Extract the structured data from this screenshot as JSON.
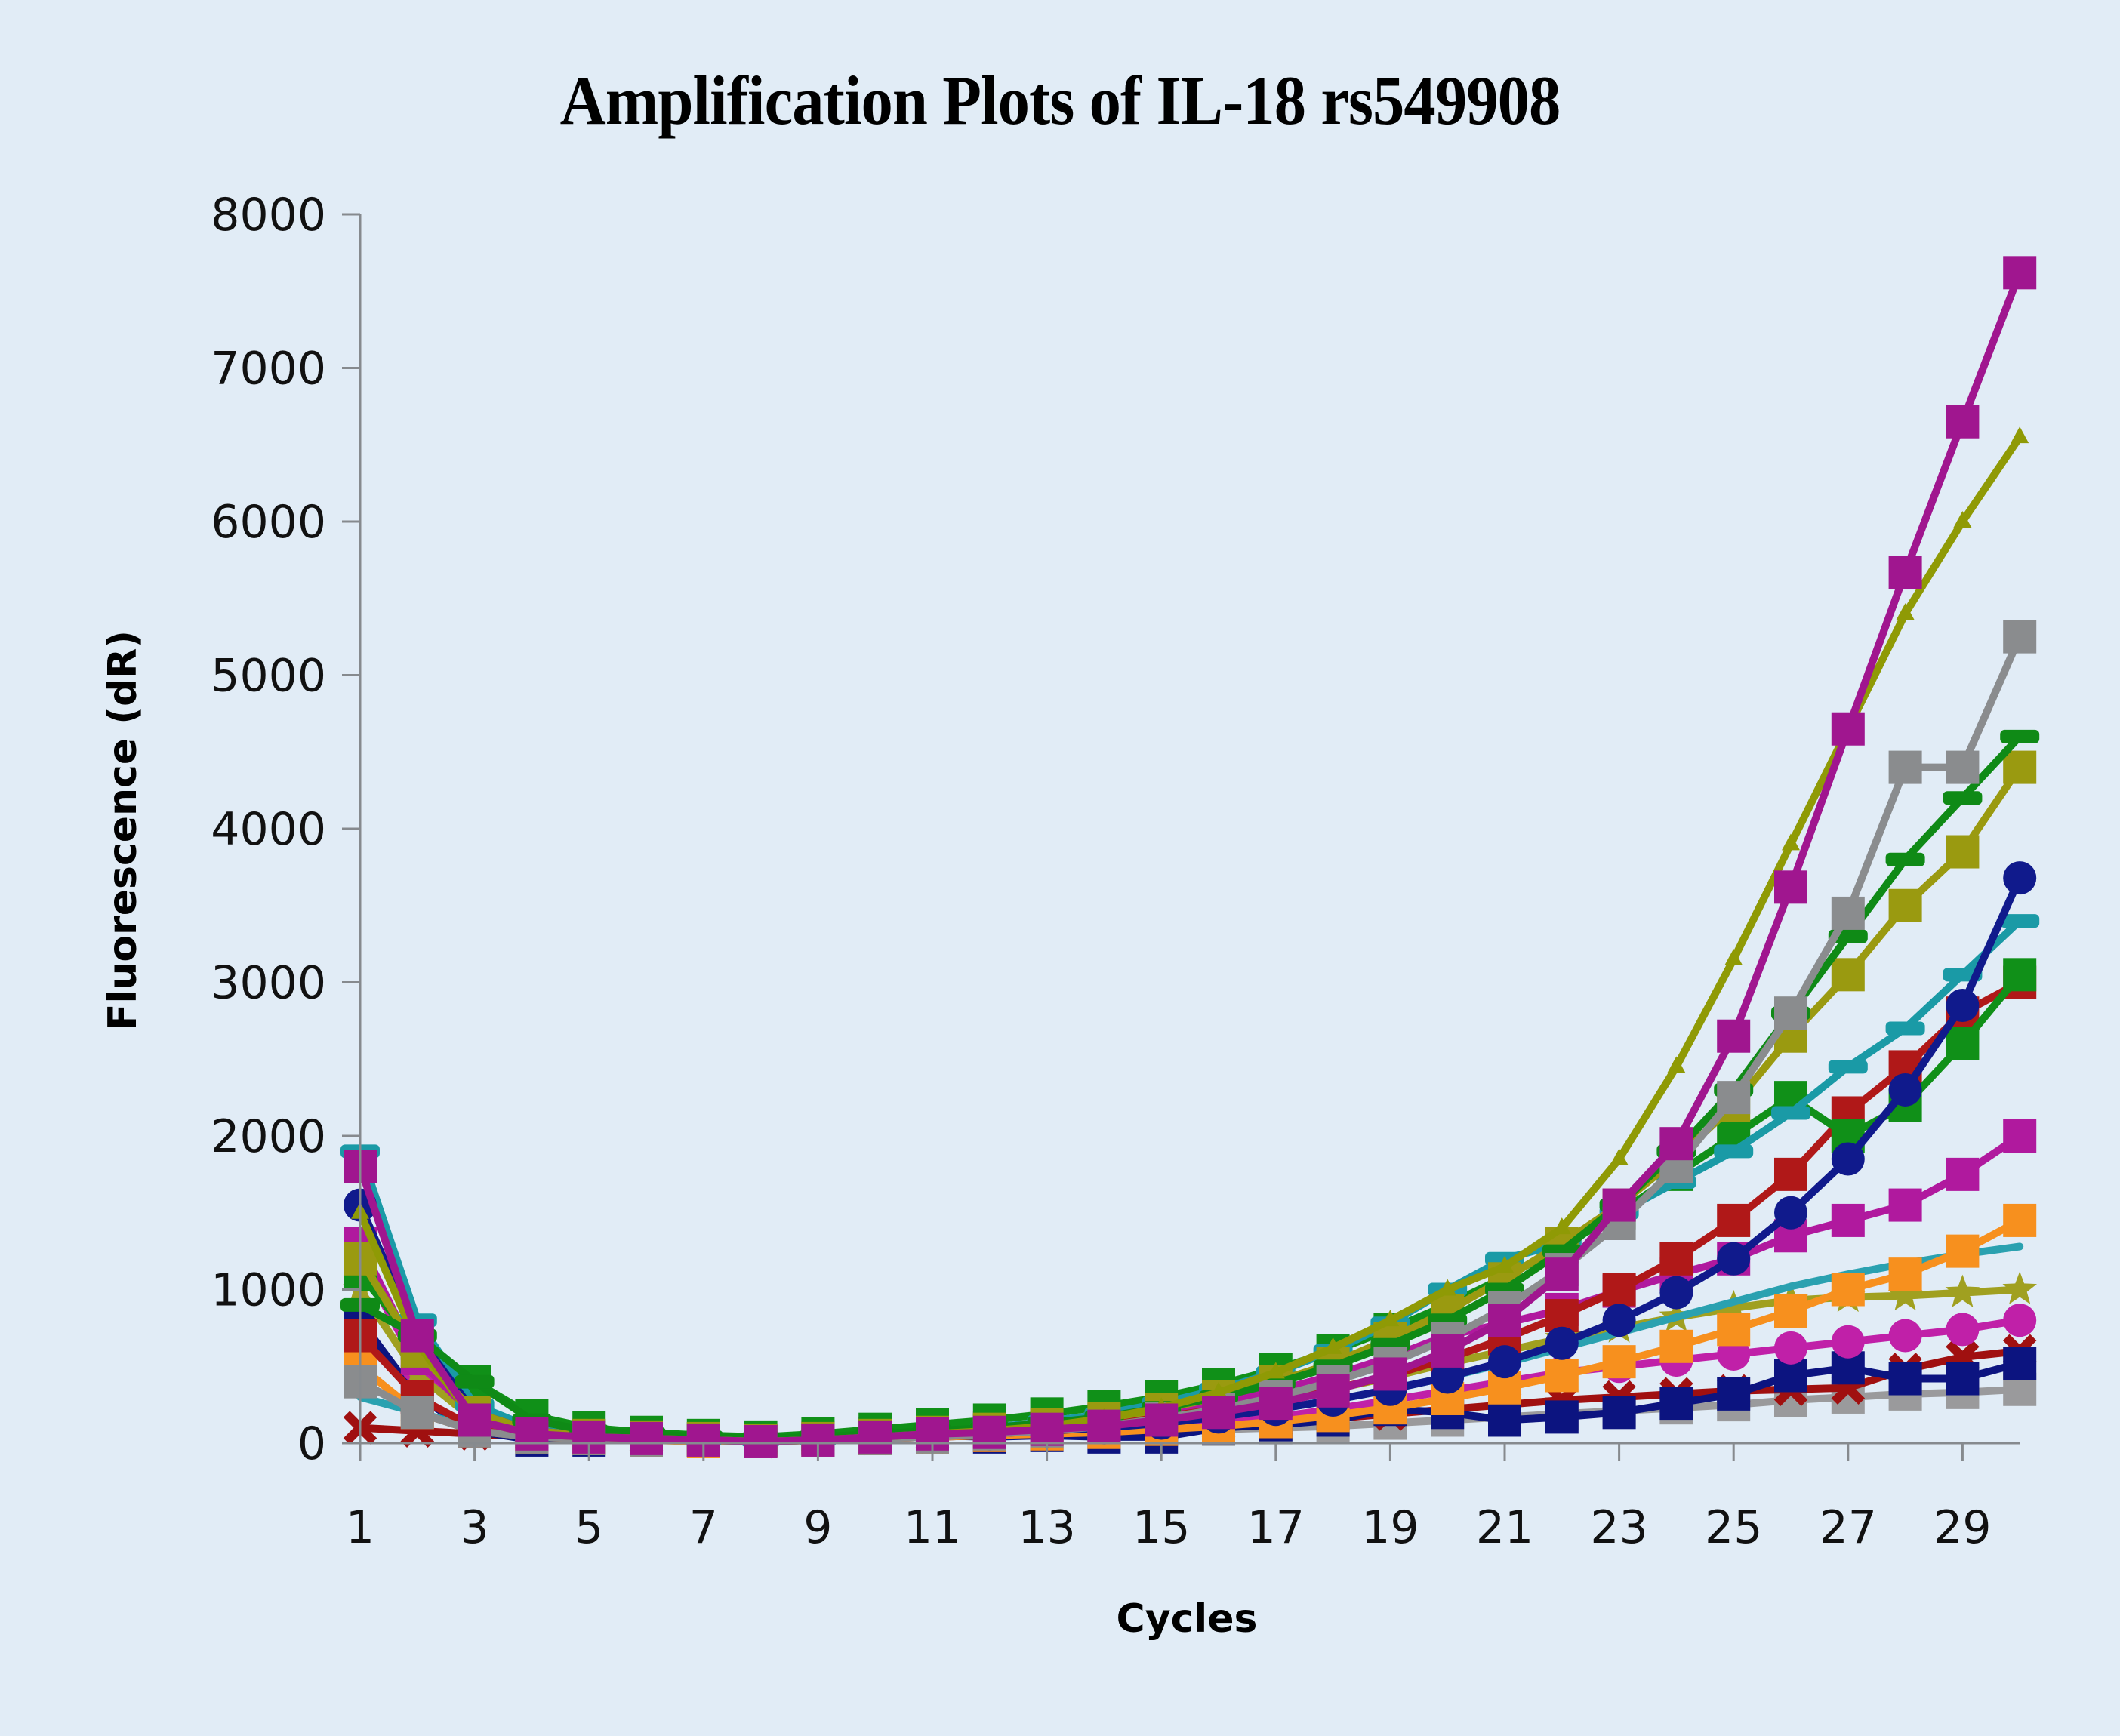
{
  "chart_data": {
    "type": "line",
    "title": "Amplification Plots of IL-18 rs549908",
    "xlabel": "Cycles",
    "ylabel": "Fluorescence (dR)",
    "xlim": [
      1,
      30
    ],
    "ylim": [
      0,
      8000
    ],
    "x_ticks": [
      1,
      3,
      5,
      7,
      9,
      11,
      13,
      15,
      17,
      19,
      21,
      23,
      25,
      27,
      29
    ],
    "y_ticks": [
      0,
      1000,
      2000,
      3000,
      4000,
      5000,
      6000,
      7000,
      8000
    ],
    "grid": false,
    "legend": "none",
    "x": [
      1,
      2,
      3,
      4,
      5,
      6,
      7,
      8,
      9,
      10,
      11,
      12,
      13,
      14,
      15,
      16,
      17,
      18,
      19,
      20,
      21,
      22,
      23,
      24,
      25,
      26,
      27,
      28,
      29,
      30
    ],
    "series": [
      {
        "name": "well-magenta-square-high",
        "color": "#a0168f",
        "marker": "square",
        "values": [
          1800,
          700,
          150,
          60,
          40,
          30,
          20,
          10,
          20,
          40,
          60,
          70,
          90,
          110,
          150,
          200,
          260,
          340,
          450,
          600,
          800,
          1100,
          1550,
          1950,
          2650,
          3620,
          4650,
          5670,
          6650,
          7620
        ]
      },
      {
        "name": "well-olive-triangle-high",
        "color": "#8f9a05",
        "marker": "triangle",
        "values": [
          1500,
          650,
          150,
          60,
          40,
          30,
          20,
          10,
          20,
          40,
          60,
          80,
          110,
          160,
          230,
          330,
          460,
          620,
          800,
          1000,
          1150,
          1400,
          1850,
          2450,
          3150,
          3900,
          4650,
          5400,
          6000,
          6550
        ]
      },
      {
        "name": "well-gray-square",
        "color": "#8a8c8e",
        "marker": "square",
        "values": [
          400,
          200,
          80,
          40,
          30,
          20,
          20,
          10,
          20,
          30,
          40,
          60,
          80,
          110,
          160,
          220,
          300,
          400,
          520,
          680,
          880,
          1130,
          1430,
          1800,
          2250,
          2800,
          3450,
          4400,
          4400,
          5250
        ]
      },
      {
        "name": "well-green-dash",
        "color": "#0f8a16",
        "marker": "dash",
        "values": [
          900,
          700,
          400,
          150,
          80,
          60,
          40,
          30,
          40,
          60,
          80,
          100,
          130,
          170,
          230,
          300,
          390,
          500,
          640,
          800,
          1000,
          1250,
          1550,
          1900,
          2300,
          2800,
          3300,
          3800,
          4200,
          4600
        ]
      },
      {
        "name": "well-olive-square-2",
        "color": "#9a9a10",
        "marker": "square",
        "values": [
          1200,
          600,
          200,
          80,
          50,
          40,
          30,
          20,
          30,
          50,
          70,
          90,
          120,
          160,
          220,
          300,
          400,
          520,
          680,
          860,
          1070,
          1300,
          1550,
          1850,
          2200,
          2650,
          3050,
          3500,
          3850,
          4400
        ]
      },
      {
        "name": "well-navy-circle",
        "color": "#101a8c",
        "marker": "circle",
        "values": [
          1550,
          700,
          200,
          80,
          50,
          40,
          30,
          20,
          30,
          40,
          50,
          60,
          80,
          100,
          130,
          170,
          220,
          280,
          350,
          430,
          530,
          650,
          800,
          980,
          1200,
          1500,
          1850,
          2300,
          2850,
          3680
        ]
      },
      {
        "name": "well-teal-dash",
        "color": "#1a9aa6",
        "marker": "dash",
        "values": [
          1900,
          800,
          250,
          100,
          60,
          40,
          30,
          20,
          30,
          50,
          70,
          100,
          140,
          190,
          260,
          350,
          460,
          600,
          780,
          1000,
          1200,
          1300,
          1500,
          1700,
          1900,
          2150,
          2450,
          2700,
          3050,
          3400
        ]
      },
      {
        "name": "well-green-square",
        "color": "#109018",
        "marker": "square",
        "values": [
          1100,
          650,
          400,
          180,
          100,
          70,
          50,
          40,
          60,
          90,
          120,
          150,
          190,
          240,
          300,
          380,
          480,
          600,
          740,
          900,
          1080,
          1280,
          1500,
          1750,
          2000,
          2250,
          2000,
          2200,
          2600,
          3050
        ]
      },
      {
        "name": "well-red-square",
        "color": "#b01818",
        "marker": "square",
        "values": [
          700,
          300,
          100,
          50,
          40,
          30,
          20,
          20,
          30,
          40,
          60,
          80,
          100,
          130,
          170,
          220,
          280,
          350,
          440,
          550,
          680,
          830,
          1000,
          1200,
          1450,
          1750,
          2150,
          2450,
          2800,
          3000
        ]
      },
      {
        "name": "well-magenta-square-mid",
        "color": "#b0199e",
        "marker": "square",
        "values": [
          1300,
          550,
          180,
          70,
          50,
          40,
          30,
          20,
          40,
          60,
          80,
          100,
          120,
          150,
          200,
          260,
          340,
          440,
          560,
          700,
          780,
          870,
          990,
          1100,
          1200,
          1350,
          1450,
          1550,
          1750,
          2000
        ]
      },
      {
        "name": "well-orange-square",
        "color": "#f7901e",
        "marker": "square",
        "values": [
          500,
          200,
          80,
          40,
          30,
          20,
          10,
          10,
          20,
          30,
          40,
          50,
          60,
          70,
          90,
          110,
          140,
          180,
          230,
          290,
          360,
          440,
          530,
          630,
          740,
          860,
          1000,
          1100,
          1250,
          1450
        ]
      },
      {
        "name": "well-teal-line-low",
        "color": "#2aa1b0",
        "marker": "none",
        "values": [
          300,
          200,
          100,
          50,
          40,
          30,
          20,
          20,
          30,
          40,
          50,
          60,
          80,
          100,
          130,
          170,
          220,
          280,
          350,
          430,
          520,
          620,
          720,
          820,
          920,
          1020,
          1100,
          1170,
          1230,
          1280
        ]
      },
      {
        "name": "well-olive-star",
        "color": "#a0a020",
        "marker": "star",
        "values": [
          1000,
          450,
          150,
          60,
          40,
          30,
          20,
          20,
          30,
          40,
          60,
          80,
          100,
          130,
          170,
          220,
          280,
          350,
          430,
          520,
          600,
          680,
          750,
          820,
          880,
          930,
          950,
          960,
          980,
          1000
        ]
      },
      {
        "name": "well-magenta-line-low",
        "color": "#c020a8",
        "marker": "circle",
        "values": [
          1200,
          500,
          180,
          60,
          40,
          30,
          20,
          20,
          30,
          40,
          50,
          60,
          70,
          80,
          100,
          130,
          170,
          220,
          280,
          340,
          400,
          460,
          500,
          540,
          580,
          620,
          660,
          700,
          740,
          800
        ]
      },
      {
        "name": "well-navy-square-low",
        "color": "#0c1480",
        "marker": "square",
        "values": [
          800,
          300,
          80,
          20,
          20,
          20,
          20,
          20,
          20,
          30,
          50,
          40,
          50,
          40,
          40,
          100,
          120,
          150,
          220,
          200,
          150,
          170,
          200,
          260,
          320,
          440,
          490,
          420,
          420,
          520
        ]
      },
      {
        "name": "well-darkred-x",
        "color": "#a01010",
        "marker": "x",
        "values": [
          100,
          80,
          60,
          40,
          30,
          20,
          20,
          10,
          20,
          30,
          40,
          50,
          60,
          70,
          90,
          110,
          130,
          160,
          190,
          220,
          250,
          280,
          300,
          320,
          340,
          350,
          360,
          480,
          560,
          600
        ]
      },
      {
        "name": "well-gray-square-low",
        "color": "#9a9a9c",
        "marker": "square",
        "values": [
          400,
          200,
          80,
          40,
          30,
          20,
          20,
          10,
          20,
          30,
          40,
          50,
          60,
          70,
          80,
          90,
          100,
          110,
          130,
          150,
          170,
          190,
          210,
          230,
          250,
          280,
          300,
          320,
          330,
          350
        ]
      }
    ]
  }
}
